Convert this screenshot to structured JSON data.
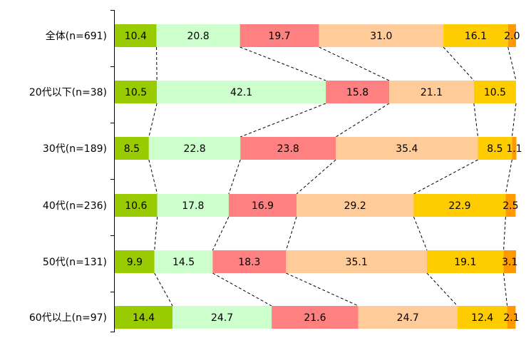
{
  "chart_data": {
    "type": "bar",
    "orientation": "horizontal",
    "stacked": true,
    "percent_stacked": true,
    "categories": [
      "全体(n=691)",
      "20代以下(n=38)",
      "30代(n=189)",
      "40代(n=236)",
      "50代(n=131)",
      "60代以上(n=97)"
    ],
    "series": [
      {
        "color": "#99cc00",
        "values": [
          10.4,
          10.5,
          8.5,
          10.6,
          9.9,
          14.4
        ]
      },
      {
        "color": "#ccffcc",
        "values": [
          20.8,
          42.1,
          22.8,
          17.8,
          14.5,
          24.7
        ]
      },
      {
        "color": "#ff8080",
        "values": [
          19.7,
          15.8,
          23.8,
          16.9,
          18.3,
          21.6
        ]
      },
      {
        "color": "#ffcc99",
        "values": [
          31.0,
          21.1,
          35.4,
          29.2,
          35.1,
          24.7
        ]
      },
      {
        "color": "#ffcc00",
        "values": [
          16.1,
          10.5,
          8.5,
          22.9,
          19.1,
          12.4
        ]
      },
      {
        "color": "#ff9900",
        "values": [
          2.0,
          0.0,
          1.1,
          2.5,
          3.1,
          2.1
        ]
      }
    ],
    "value_labels": [
      [
        "10.4",
        "20.8",
        "19.7",
        "31.0",
        "16.1",
        "2.0"
      ],
      [
        "10.5",
        "42.1",
        "15.8",
        "21.1",
        "10.5",
        ""
      ],
      [
        "8.5",
        "22.8",
        "23.8",
        "35.4",
        "8.5",
        "1.1"
      ],
      [
        "10.6",
        "17.8",
        "16.9",
        "29.2",
        "22.9",
        "2.5"
      ],
      [
        "9.9",
        "14.5",
        "18.3",
        "35.1",
        "19.1",
        "3.1"
      ],
      [
        "14.4",
        "24.7",
        "21.6",
        "24.7",
        "12.4",
        "2.1"
      ]
    ],
    "xlim": [
      0,
      100
    ],
    "series_lines": true,
    "legend": "none",
    "grid": false
  }
}
